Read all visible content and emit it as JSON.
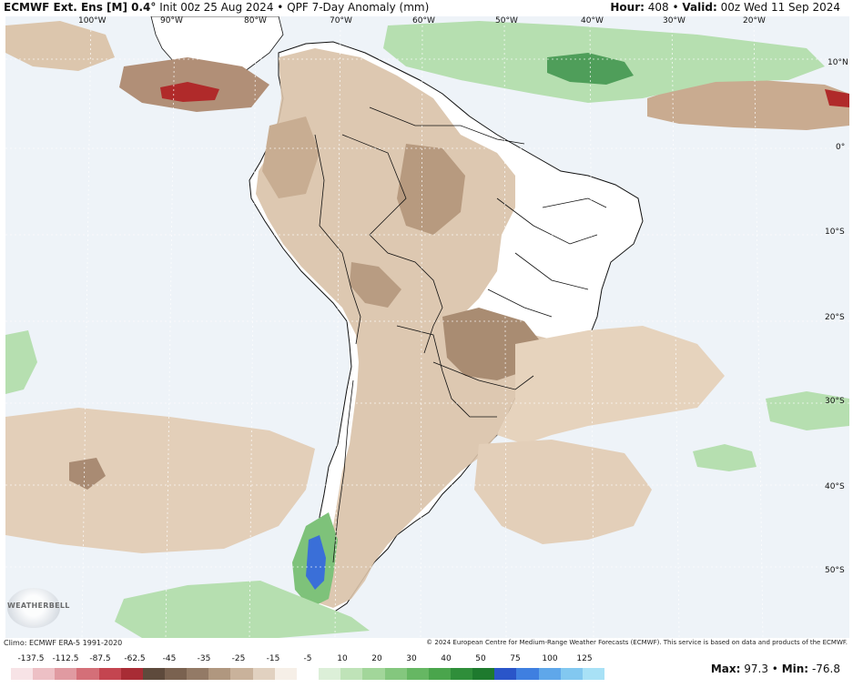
{
  "header": {
    "model": "ECMWF Ext. Ens [M] 0.4°",
    "init": "Init 00z 25 Aug 2024",
    "sep": "•",
    "product": "QPF 7-Day Anomaly (mm)",
    "hour_label": "Hour:",
    "hour_value": "408",
    "valid_label": "Valid:",
    "valid_value": "00z Wed 11 Sep 2024"
  },
  "map": {
    "lon_labels": [
      "100°W",
      "90°W",
      "80°W",
      "70°W",
      "60°W",
      "50°W",
      "40°W",
      "30°W",
      "20°W"
    ],
    "lat_labels": [
      "10°N",
      "0°",
      "10°S",
      "20°S",
      "30°S",
      "40°S",
      "50°S"
    ],
    "colors": {
      "ocean": "#eef3f8",
      "dry_light": "#e6d3bd",
      "dry_mid": "#c9a98c",
      "dry_dark": "#8f725c",
      "dry_red": "#b02a2a",
      "wet_light": "#b6dfb0",
      "wet_mid": "#7ec27a",
      "wet_dark": "#3f9654",
      "wet_blue": "#3a6fd8",
      "border": "#111111"
    }
  },
  "logo": {
    "text": "WEATHERBELL"
  },
  "footer": {
    "climo": "Climo: ECMWF ERA-5 1991-2020",
    "copyright": "© 2024 European Centre for Medium-Range Weather Forecasts (ECMWF). This service is based on data and products of the ECMWF."
  },
  "colorbar": {
    "labels": [
      "-137.5",
      "-112.5",
      "-87.5",
      "-62.5",
      "-45",
      "-35",
      "-25",
      "-15",
      "-5",
      "10",
      "20",
      "30",
      "40",
      "50",
      "75",
      "100",
      "125"
    ],
    "colors": [
      "#f7e3e6",
      "#edc0c5",
      "#e09aa1",
      "#d46f78",
      "#c44550",
      "#a82c35",
      "#5e4a3c",
      "#7a6250",
      "#937a66",
      "#b0977f",
      "#c9b29b",
      "#e1d1c0",
      "#f6efe7",
      "#ffffff",
      "#dcefd8",
      "#bfe3b8",
      "#a2d69a",
      "#84c77e",
      "#66b763",
      "#4aa54c",
      "#2f8e3a",
      "#1e7a2e",
      "#2a55c9",
      "#3f7fe0",
      "#5fa7ea",
      "#82c8f0",
      "#a8e1f6"
    ]
  },
  "maxmin": {
    "max_label": "Max:",
    "max_value": "97.3",
    "sep": "•",
    "min_label": "Min:",
    "min_value": "-76.8"
  }
}
